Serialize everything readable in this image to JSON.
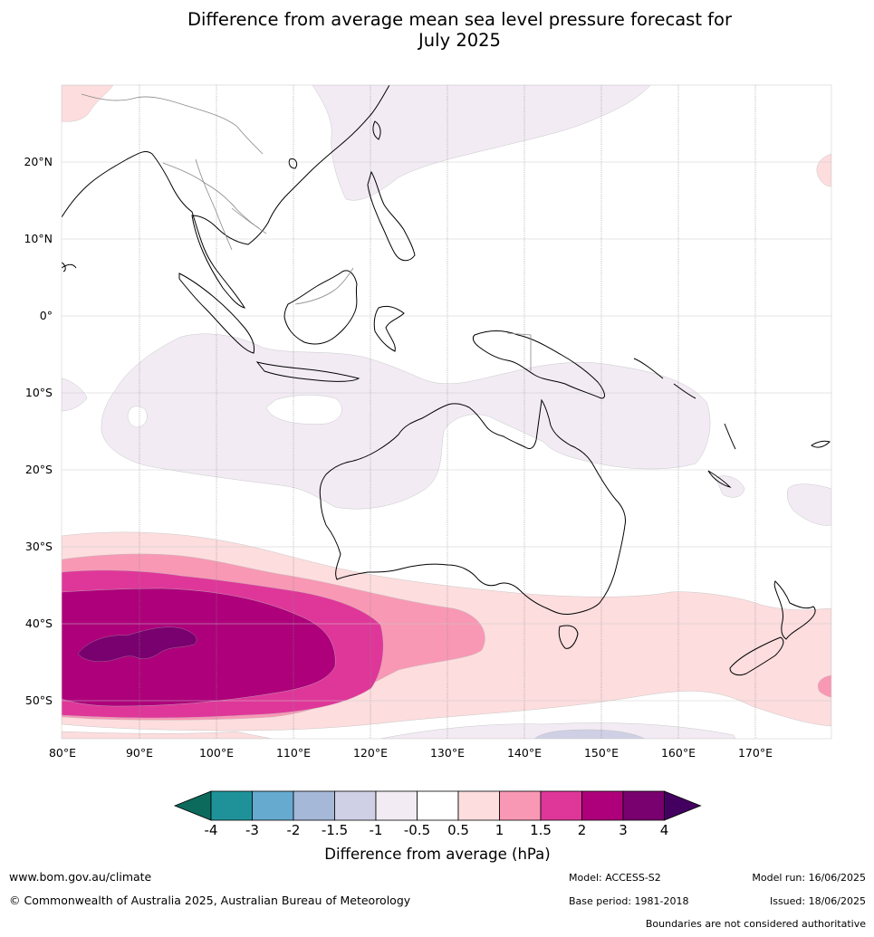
{
  "title": {
    "line1": "Difference from average mean sea level pressure forecast for",
    "line2": "July 2025"
  },
  "map": {
    "lat_labels": [
      "20°N",
      "10°N",
      "0°",
      "10°S",
      "20°S",
      "30°S",
      "40°S",
      "50°S"
    ],
    "lon_labels": [
      "80°E",
      "90°E",
      "100°E",
      "110°E",
      "120°E",
      "130°E",
      "140°E",
      "150°E",
      "160°E",
      "170°E"
    ]
  },
  "colorbar": {
    "title": "Difference from average (hPa)",
    "tick_labels": [
      "-4",
      "-3",
      "-2",
      "-1.5",
      "-1",
      "-0.5",
      "0.5",
      "1",
      "1.5",
      "2",
      "3",
      "4"
    ],
    "colors": [
      "#0b6a5c",
      "#1f9299",
      "#66aad0",
      "#a5b8d8",
      "#cfd0e5",
      "#f2ebf4",
      "#ffffff",
      "#fdddde",
      "#f898b4",
      "#df3799",
      "#ad007a",
      "#79006f",
      "#440060"
    ]
  },
  "footer": {
    "website": "www.bom.gov.au/climate",
    "copyright": "© Commonwealth of Australia 2025, Australian Bureau of Meteorology",
    "model": "Model: ACCESS-S2",
    "base_period": "Base period: 1981-2018",
    "model_run": "Model run: 16/06/2025",
    "issued": "Issued: 18/06/2025",
    "disclaimer": "Boundaries are not considered authoritative"
  }
}
